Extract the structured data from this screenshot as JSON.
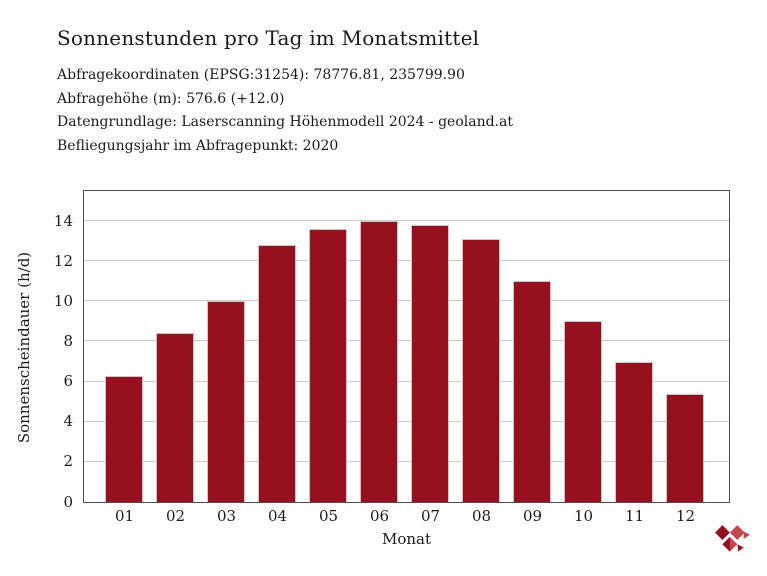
{
  "header": {
    "title": "Sonnenstunden pro Tag im Monatsmittel",
    "meta_lines": [
      "Abfragekoordinaten (EPSG:31254): 78776.81, 235799.90",
      "Abfragehöhe (m): 576.6 (+12.0)",
      "Datengrundlage: Laserscanning Höhenmodell 2024 - geoland.at",
      "Befliegungsjahr im Abfragepunkt: 2020"
    ]
  },
  "chart_data": {
    "type": "bar",
    "title": "Sonnenstunden pro Tag im Monatsmittel",
    "categories": [
      "01",
      "02",
      "03",
      "04",
      "05",
      "06",
      "07",
      "08",
      "09",
      "10",
      "11",
      "12"
    ],
    "values": [
      6.3,
      8.4,
      10.0,
      12.8,
      13.6,
      14.0,
      13.8,
      13.1,
      11.0,
      9.0,
      7.0,
      5.4
    ],
    "xlabel": "Monat",
    "ylabel": "Sonnenscheindauer (h/d)",
    "yticks": [
      0,
      2,
      4,
      6,
      8,
      10,
      12,
      14
    ],
    "ylim": [
      0,
      15.5
    ],
    "grid": "horizontal",
    "legend": "none",
    "colors": {
      "bar_fill": "#97101f",
      "bar_border": "#c8c8c8",
      "gridline": "#cccccc",
      "axis_border": "#4d4d4d",
      "text": "#1a1a1a"
    }
  },
  "logo": {
    "label": "provider-logo",
    "color_dark": "#8e1220",
    "color_light": "#c4474f"
  }
}
